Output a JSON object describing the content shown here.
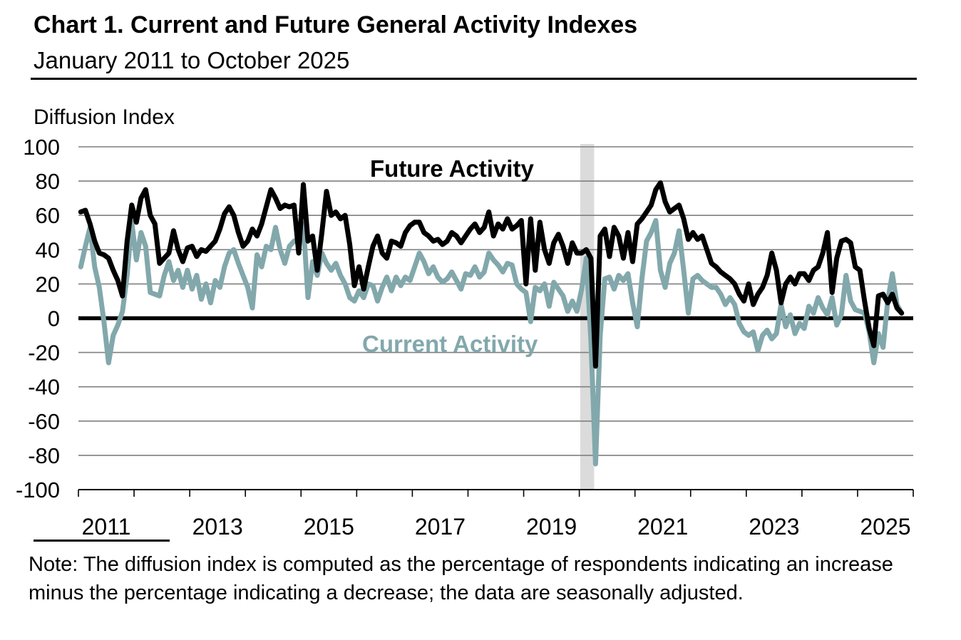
{
  "page": {
    "title": "Chart 1. Current and Future General Activity Indexes",
    "subtitle": "January 2011 to October 2025",
    "y_axis_unit_label": "Diffusion Index",
    "note_line1": "Note: The diffusion index is computed as the percentage of respondents indicating an increase",
    "note_line2": "minus the percentage indicating a decrease; the data are seasonally adjusted."
  },
  "chart_data": {
    "type": "line",
    "title": "Chart 1. Current and Future General Activity Indexes",
    "subtitle": "January 2011 to October 2025",
    "ylabel": "Diffusion Index",
    "frequency": "monthly",
    "x_start": "2011-01",
    "x_end": "2025-10",
    "y_axis": {
      "min": -100,
      "max": 100,
      "ticks": [
        100,
        80,
        60,
        40,
        20,
        0,
        -20,
        -40,
        -60,
        -80,
        -100
      ]
    },
    "x_axis": {
      "start_year": 2011,
      "end_year": 2026,
      "labeled_years": [
        "2011",
        "2013",
        "2015",
        "2017",
        "2019",
        "2021",
        "2023",
        "2025"
      ]
    },
    "grid": true,
    "legend_position": "in-plot-text-labels",
    "recession_band": {
      "label": "2020 recession shading",
      "start": "2020-02",
      "end": "2020-04",
      "start_month_index": 108.2,
      "end_month_index": 111.2,
      "color": "#DBDBDB"
    },
    "colors": {
      "future": "#000000",
      "current": "#82A8AC",
      "gridline": "#7F7F7F",
      "zero_line": "#000000"
    },
    "series": [
      {
        "name": "Future Activity",
        "color": "#000000",
        "values": [
          62,
          63,
          55,
          45,
          38,
          37,
          35,
          28,
          22,
          13,
          45,
          66,
          56,
          70,
          75,
          60,
          55,
          32,
          35,
          38,
          51,
          40,
          33,
          41,
          42,
          36,
          40,
          39,
          42,
          45,
          52,
          61,
          65,
          60,
          50,
          42,
          45,
          52,
          48,
          55,
          65,
          75,
          70,
          64,
          66,
          65,
          66,
          38,
          78,
          45,
          48,
          28,
          50,
          74,
          60,
          62,
          58,
          60,
          43,
          19,
          30,
          17,
          30,
          42,
          48,
          38,
          35,
          45,
          44,
          42,
          50,
          54,
          56,
          56,
          50,
          48,
          45,
          46,
          43,
          45,
          50,
          48,
          44,
          48,
          52,
          55,
          50,
          53,
          62,
          48,
          55,
          52,
          58,
          52,
          54,
          57,
          20,
          58,
          28,
          56,
          40,
          32,
          44,
          49,
          42,
          32,
          44,
          38,
          38,
          40,
          35,
          -28,
          48,
          52,
          36,
          53,
          48,
          35,
          50,
          33,
          55,
          58,
          62,
          66,
          75,
          79,
          68,
          62,
          64,
          66,
          58,
          46,
          50,
          46,
          48,
          40,
          32,
          30,
          27,
          25,
          23,
          20,
          14,
          10,
          20,
          8,
          14,
          18,
          25,
          38,
          28,
          9,
          20,
          24,
          20,
          26,
          26,
          22,
          28,
          30,
          38,
          50,
          15,
          35,
          45,
          46,
          44,
          30,
          28,
          10,
          -6,
          -16,
          13,
          14,
          9,
          14,
          6,
          3
        ]
      },
      {
        "name": "Current Activity",
        "color": "#82A8AC",
        "values": [
          30,
          42,
          53,
          30,
          18,
          -2,
          -26,
          -10,
          -4,
          4,
          25,
          56,
          34,
          50,
          42,
          15,
          14,
          13,
          25,
          33,
          22,
          28,
          18,
          28,
          17,
          25,
          11,
          20,
          9,
          22,
          18,
          30,
          38,
          40,
          32,
          25,
          18,
          6,
          37,
          30,
          42,
          40,
          53,
          40,
          32,
          42,
          45,
          46,
          55,
          12,
          33,
          25,
          38,
          32,
          28,
          32,
          25,
          20,
          12,
          10,
          16,
          12,
          20,
          19,
          10,
          18,
          24,
          16,
          24,
          19,
          24,
          22,
          30,
          38,
          33,
          26,
          30,
          24,
          21,
          23,
          27,
          22,
          17,
          26,
          25,
          30,
          24,
          27,
          38,
          34,
          31,
          27,
          32,
          31,
          20,
          17,
          15,
          -2,
          18,
          16,
          20,
          7,
          21,
          17,
          13,
          4,
          10,
          4,
          17,
          35,
          -13,
          -85,
          -10,
          23,
          24,
          17,
          25,
          22,
          26,
          9,
          -5,
          23,
          45,
          50,
          57,
          28,
          18,
          32,
          38,
          51,
          28,
          3,
          23,
          25,
          22,
          20,
          18,
          18,
          14,
          8,
          12,
          8,
          -3,
          -8,
          -10,
          -8,
          -19,
          -10,
          -7,
          -12,
          -9,
          8,
          -5,
          2,
          -9,
          -3,
          -6,
          7,
          3,
          12,
          6,
          2,
          12,
          -4,
          2,
          25,
          10,
          5,
          4,
          3,
          -8,
          -26,
          -9,
          -17,
          10,
          26,
          8,
          3
        ]
      }
    ],
    "series_labels": {
      "future": "Future Activity",
      "current": "Current Activity"
    }
  }
}
